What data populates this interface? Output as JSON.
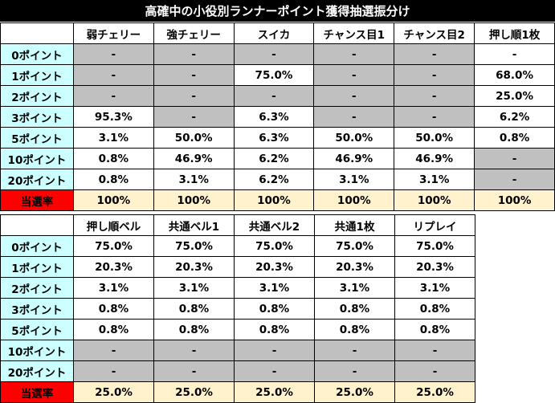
{
  "title": "高確中の小役別ランナーポイント獲得抽選振分け",
  "colors": {
    "title_bg": "#000000",
    "row_header_bg": "#ccffff",
    "hit_label_bg": "#ff0000",
    "hit_label_text": "#ffff00",
    "empty_cell_bg": "#c0c0c0",
    "hit_rate_bg": "#fff2cc"
  },
  "table1": {
    "headers": [
      "弱チェリー",
      "強チェリー",
      "スイカ",
      "チャンス目1",
      "チャンス目2",
      "押し順1枚"
    ],
    "rows": [
      {
        "label": "0ポイント",
        "cells": [
          "-",
          "-",
          "-",
          "-",
          "-",
          "-"
        ],
        "empty": [
          true,
          true,
          true,
          true,
          true,
          false
        ]
      },
      {
        "label": "1ポイント",
        "cells": [
          "-",
          "-",
          "75.0%",
          "-",
          "-",
          "68.0%"
        ],
        "empty": [
          true,
          true,
          false,
          true,
          true,
          false
        ]
      },
      {
        "label": "2ポイント",
        "cells": [
          "-",
          "-",
          "-",
          "-",
          "-",
          "25.0%"
        ],
        "empty": [
          true,
          true,
          true,
          true,
          true,
          false
        ]
      },
      {
        "label": "3ポイント",
        "cells": [
          "95.3%",
          "-",
          "6.3%",
          "-",
          "-",
          "6.2%"
        ],
        "empty": [
          false,
          true,
          false,
          true,
          true,
          false
        ]
      },
      {
        "label": "5ポイント",
        "cells": [
          "3.1%",
          "50.0%",
          "6.3%",
          "50.0%",
          "50.0%",
          "0.8%"
        ],
        "empty": [
          false,
          false,
          false,
          false,
          false,
          false
        ]
      },
      {
        "label": "10ポイント",
        "cells": [
          "0.8%",
          "46.9%",
          "6.2%",
          "46.9%",
          "46.9%",
          "-"
        ],
        "empty": [
          false,
          false,
          false,
          false,
          false,
          true
        ]
      },
      {
        "label": "20ポイント",
        "cells": [
          "0.8%",
          "3.1%",
          "6.2%",
          "3.1%",
          "3.1%",
          "-"
        ],
        "empty": [
          false,
          false,
          false,
          false,
          false,
          true
        ]
      }
    ],
    "hit_label": "当選率",
    "hit_values": [
      "100%",
      "100%",
      "100%",
      "100%",
      "100%",
      "100%"
    ]
  },
  "table2": {
    "headers": [
      "押し順ベル",
      "共通ベル1",
      "共通ベル2",
      "共通1枚",
      "リプレイ"
    ],
    "rows": [
      {
        "label": "0ポイント",
        "cells": [
          "75.0%",
          "75.0%",
          "75.0%",
          "75.0%",
          "75.0%"
        ],
        "empty": [
          false,
          false,
          false,
          false,
          false
        ]
      },
      {
        "label": "1ポイント",
        "cells": [
          "20.3%",
          "20.3%",
          "20.3%",
          "20.3%",
          "20.3%"
        ],
        "empty": [
          false,
          false,
          false,
          false,
          false
        ]
      },
      {
        "label": "2ポイント",
        "cells": [
          "3.1%",
          "3.1%",
          "3.1%",
          "3.1%",
          "3.1%"
        ],
        "empty": [
          false,
          false,
          false,
          false,
          false
        ]
      },
      {
        "label": "3ポイント",
        "cells": [
          "0.8%",
          "0.8%",
          "0.8%",
          "0.8%",
          "0.8%"
        ],
        "empty": [
          false,
          false,
          false,
          false,
          false
        ]
      },
      {
        "label": "5ポイント",
        "cells": [
          "0.8%",
          "0.8%",
          "0.8%",
          "0.8%",
          "0.8%"
        ],
        "empty": [
          false,
          false,
          false,
          false,
          false
        ]
      },
      {
        "label": "10ポイント",
        "cells": [
          "-",
          "-",
          "-",
          "-",
          "-"
        ],
        "empty": [
          true,
          true,
          true,
          true,
          true
        ]
      },
      {
        "label": "20ポイント",
        "cells": [
          "-",
          "-",
          "-",
          "-",
          "-"
        ],
        "empty": [
          true,
          true,
          true,
          true,
          true
        ]
      }
    ],
    "hit_label": "当選率",
    "hit_values": [
      "25.0%",
      "25.0%",
      "25.0%",
      "25.0%",
      "25.0%"
    ]
  }
}
